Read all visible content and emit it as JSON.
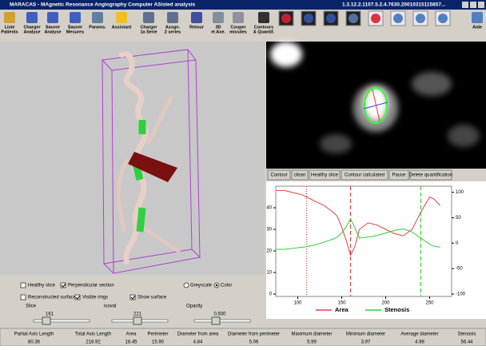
{
  "title_bar": {
    "title": "MARACAS - MAgnetic Resonance Angiography Computer ASisted analysis",
    "series_id": "1.3.12.2.1107.5.2.4.7630.20010315115857..."
  },
  "toolbar": [
    {
      "label": [
        "Liste",
        "Patients"
      ]
    },
    {
      "label": [
        "Charger",
        "Analyse"
      ]
    },
    {
      "label": [
        "Sauver",
        "Analyse"
      ]
    },
    {
      "label": [
        "Sauver",
        "Mesures"
      ]
    },
    {
      "label": [
        "Params."
      ]
    },
    {
      "label": [
        "Assistant"
      ]
    },
    {
      "label": [
        "Charger",
        "1a Serie"
      ]
    },
    {
      "label": [
        "Assgn.",
        "2 series"
      ]
    },
    {
      "label": [
        "Retour"
      ]
    },
    {
      "label": [
        "3D",
        "et Axe."
      ]
    },
    {
      "label": [
        "Couper",
        "missiles"
      ]
    },
    {
      "label": [
        "Contours",
        "& Quantif."
      ]
    },
    {
      "label": [
        "Aide"
      ]
    }
  ],
  "controls": {
    "checkboxes": [
      {
        "label": "Healthy slice",
        "checked": false
      },
      {
        "label": "Perpendicular section",
        "checked": true
      },
      {
        "label": "Reconstructed surface",
        "checked": false
      },
      {
        "label": "Visible rings",
        "checked": true
      },
      {
        "label": "Show surface",
        "checked": true
      }
    ],
    "radios": [
      {
        "label": "Greyscale",
        "checked": false
      },
      {
        "label": "Color",
        "checked": true
      }
    ],
    "sliders": [
      {
        "label": "Slice",
        "value": "161"
      },
      {
        "label": "isoval",
        "value": "221"
      },
      {
        "label": "Opacity",
        "value": "0.500"
      }
    ]
  },
  "buttons": [
    "Contour",
    "clean",
    "Healthy slice",
    "Contour calculated",
    "Pause",
    "Delete quantification"
  ],
  "chart": {
    "type": "line",
    "x": [
      75,
      85,
      95,
      105,
      110,
      120,
      130,
      140,
      145,
      150,
      155,
      160,
      165,
      170,
      180,
      190,
      200,
      210,
      220,
      230,
      240,
      250,
      255,
      262
    ],
    "series": [
      {
        "name": "Area",
        "color": "#e84040",
        "axis": "y",
        "values": [
          48,
          48,
          47,
          46,
          45,
          43,
          41,
          38,
          36,
          31,
          25,
          18,
          22,
          30,
          33,
          32,
          30,
          28,
          27,
          30,
          38,
          45,
          44,
          41
        ]
      },
      {
        "name": "Stenosis",
        "color": "#30d030",
        "axis": "y2",
        "values": [
          -12,
          -12,
          -10,
          -8,
          -7,
          -3,
          2,
          8,
          12,
          20,
          32,
          48,
          30,
          10,
          12,
          15,
          20,
          25,
          28,
          22,
          10,
          -2,
          -6,
          -8
        ]
      }
    ],
    "markers": [
      {
        "x": 110,
        "color": "#e84040"
      },
      {
        "x": 160,
        "color": "#e84040"
      },
      {
        "x": 240,
        "color": "#30d030"
      }
    ],
    "xlim": [
      75,
      275
    ],
    "xticks": [
      100,
      150,
      200,
      250
    ],
    "ylim": [
      0,
      50
    ],
    "yticks": [
      0,
      10,
      20,
      30,
      40
    ],
    "y2lim": [
      -100,
      112
    ],
    "y2ticks": [
      100,
      50,
      0,
      -50,
      -100
    ]
  },
  "stats": {
    "headers": [
      "Partial Axis Length",
      "Total Axis Length",
      "Area",
      "Perimeter",
      "Diameter from area",
      "Diameter from perimeter",
      "Maximum diameter",
      "Minimum diameter",
      "Average diameter",
      "Stenosis"
    ],
    "values": [
      "80.36",
      "218.92",
      "18.45",
      "15.90",
      "4.84",
      "5.06",
      "5.99",
      "3.97",
      "4.98",
      "56.44"
    ]
  }
}
